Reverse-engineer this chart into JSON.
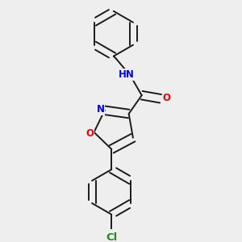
{
  "background_color": "#eeeeee",
  "bond_color": "#1a1a1a",
  "atom_colors": {
    "N": "#0000ee",
    "O": "#ee0000",
    "Cl": "#228822",
    "C": "#1a1a1a"
  },
  "font_size": 8.5,
  "line_width": 1.4,
  "dbo": 0.018
}
